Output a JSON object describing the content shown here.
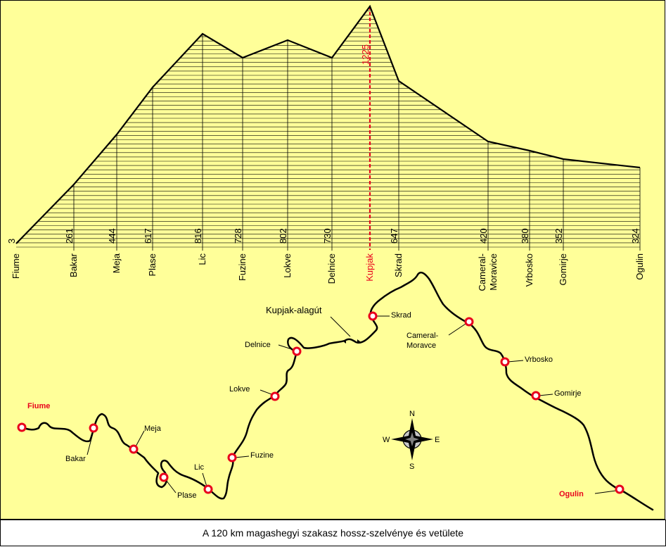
{
  "caption": "A 120 km magashegyi szakasz hossz-szelvénye és vetülete",
  "colors": {
    "background": "#ffff99",
    "line": "#000000",
    "accent": "#e8001c"
  },
  "profile": {
    "stations": [
      {
        "name": "Fiume",
        "elevation": "3"
      },
      {
        "name": "Bakar",
        "elevation": "261"
      },
      {
        "name": "Meja",
        "elevation": "444"
      },
      {
        "name": "Plase",
        "elevation": "617"
      },
      {
        "name": "Lic",
        "elevation": "816"
      },
      {
        "name": "Fuzine",
        "elevation": "728"
      },
      {
        "name": "Lokve",
        "elevation": "802"
      },
      {
        "name": "Delnice",
        "elevation": "730"
      },
      {
        "name": "Kupjak",
        "elevation": "1225",
        "highlight": true
      },
      {
        "name": "Skrad",
        "elevation": "647"
      },
      {
        "name": "Cameral-Moravice",
        "elevation": "420"
      },
      {
        "name": "Vrbosko",
        "elevation": "380"
      },
      {
        "name": "Gomirje",
        "elevation": "352"
      },
      {
        "name": "Ogulin",
        "elevation": "324"
      }
    ]
  },
  "map": {
    "tunnel_label": "Kupjak-alagút",
    "stations": [
      {
        "name": "Fiume",
        "highlight": true
      },
      {
        "name": "Bakar"
      },
      {
        "name": "Meja"
      },
      {
        "name": "Plase"
      },
      {
        "name": "Lic"
      },
      {
        "name": "Fuzine"
      },
      {
        "name": "Lokve"
      },
      {
        "name": "Delnice"
      },
      {
        "name": "Skrad"
      },
      {
        "name": "Cameral-\nMoravce"
      },
      {
        "name": "Vrbosko"
      },
      {
        "name": "Gomirje"
      },
      {
        "name": "Ogulin",
        "highlight": true
      }
    ]
  },
  "compass": {
    "n": "N",
    "s": "S",
    "e": "E",
    "w": "W"
  }
}
